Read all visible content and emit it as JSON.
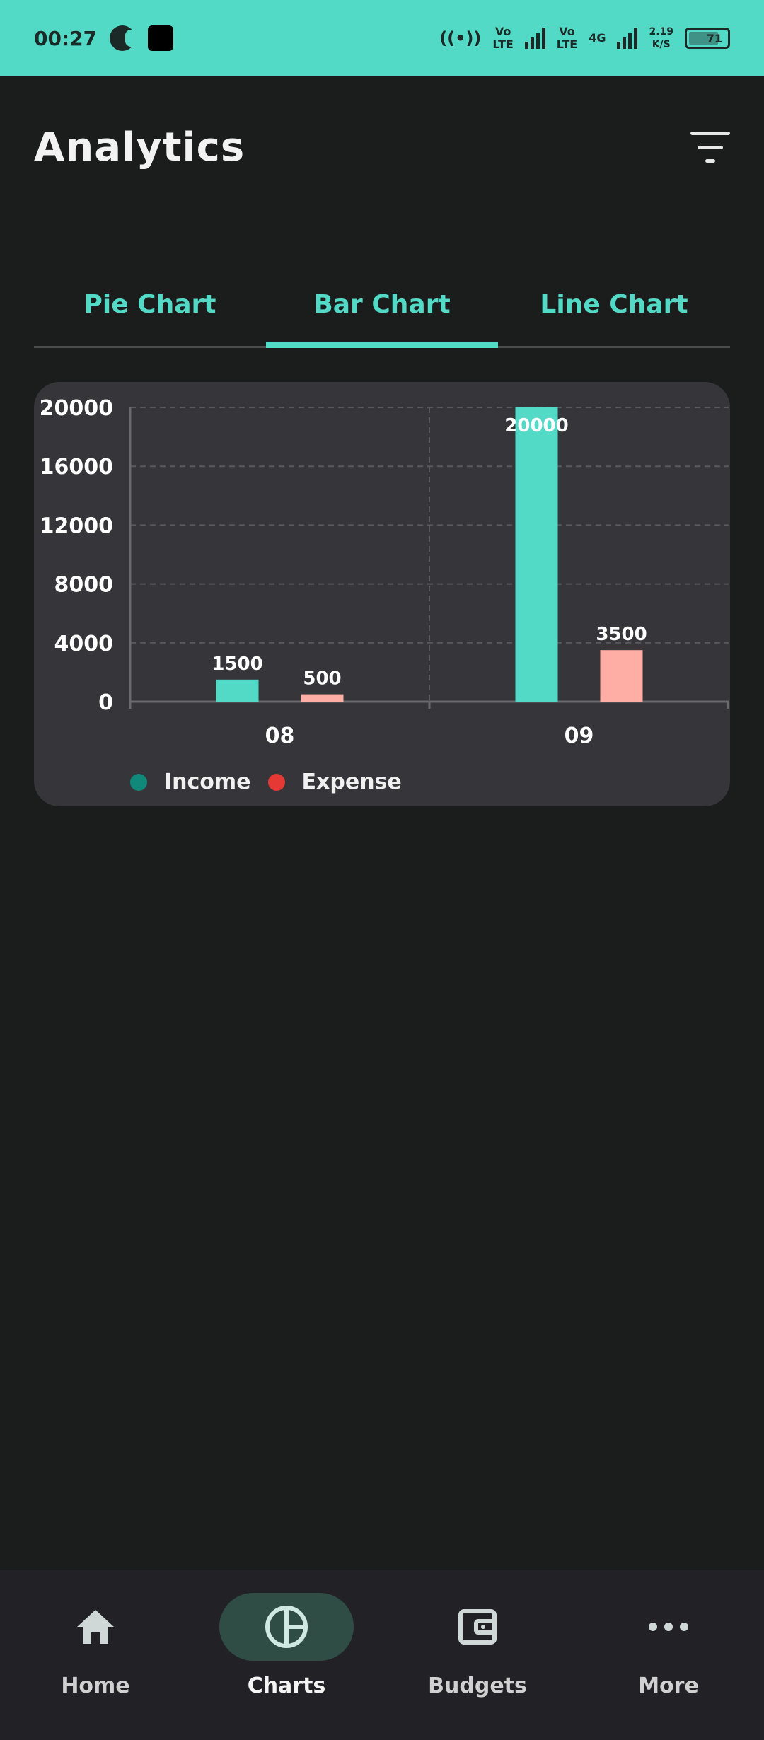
{
  "status_bar": {
    "time": "00:27",
    "volte1": [
      "Vo",
      "LTE"
    ],
    "volte2": [
      "Vo",
      "LTE"
    ],
    "network": "4G",
    "speed": [
      "2.19",
      "K/S"
    ],
    "battery": "71"
  },
  "header": {
    "title": "Analytics",
    "filter_icon": "filter-icon"
  },
  "tabs": [
    {
      "label": "Pie Chart",
      "active": false
    },
    {
      "label": "Bar Chart",
      "active": true
    },
    {
      "label": "Line Chart",
      "active": false
    }
  ],
  "colors": {
    "accent": "#52dac6",
    "income_bar": "#52dac6",
    "expense_bar": "#ffaea6",
    "income_legend": "#10897a",
    "expense_legend": "#e53935",
    "card_bg": "#363539",
    "page_bg": "#1b1c1c"
  },
  "chart_data": {
    "type": "bar",
    "categories": [
      "08",
      "09"
    ],
    "series": [
      {
        "name": "Income",
        "values": [
          1500,
          20000
        ]
      },
      {
        "name": "Expense",
        "values": [
          500,
          3500
        ]
      }
    ],
    "yticks": [
      0,
      4000,
      8000,
      12000,
      16000,
      20000
    ],
    "ylim": [
      0,
      20000
    ],
    "grid": true,
    "legend": "bottom-left"
  },
  "bottom_nav": [
    {
      "label": "Home",
      "icon": "home-icon",
      "active": false
    },
    {
      "label": "Charts",
      "icon": "pie-chart-icon",
      "active": true
    },
    {
      "label": "Budgets",
      "icon": "wallet-icon",
      "active": false
    },
    {
      "label": "More",
      "icon": "more-icon",
      "active": false
    }
  ]
}
